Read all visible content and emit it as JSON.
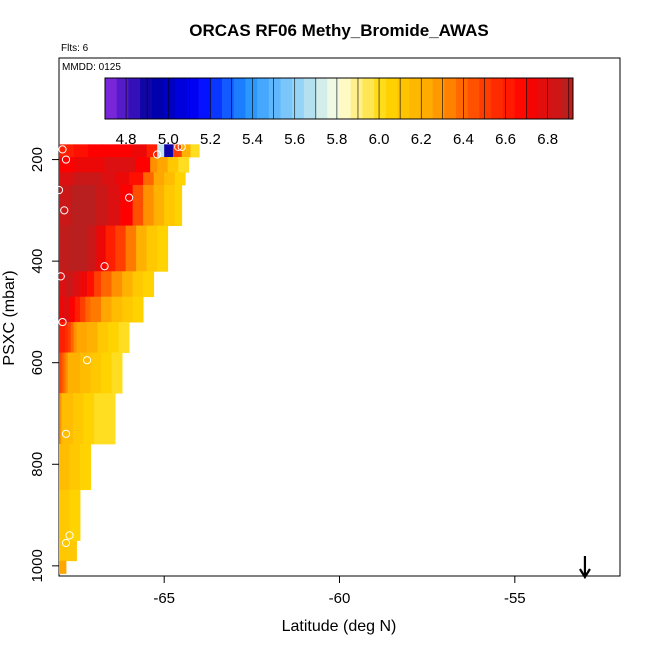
{
  "chart_data": {
    "type": "heatmap",
    "title": "ORCAS RF06 Methy_Bromide_AWAS",
    "flights_note": "Flts: 6",
    "date_note": "MMDD: 0125",
    "xlabel": "Latitude (deg N)",
    "ylabel": "PSXC (mbar)",
    "xlim": [
      -68,
      -52
    ],
    "ylim": [
      1020,
      0
    ],
    "x_ticks": [
      -65,
      -60,
      -55
    ],
    "x_tick_labels": [
      "-65",
      "-60",
      "-55"
    ],
    "y_ticks": [
      200,
      400,
      600,
      800,
      1000
    ],
    "y_tick_labels": [
      "200",
      "400",
      "600",
      "800",
      "1000"
    ],
    "colorbar": {
      "min": 4.7,
      "max": 6.92,
      "ticks": [
        4.8,
        5.0,
        5.2,
        5.4,
        5.6,
        5.8,
        6.0,
        6.2,
        6.4,
        6.6,
        6.8
      ],
      "tick_labels": [
        "4.8",
        "5.0",
        "5.2",
        "5.4",
        "5.6",
        "5.8",
        "6.0",
        "6.2",
        "6.4",
        "6.6",
        "6.8"
      ],
      "colors": [
        "#8a2be2",
        "#0000a0",
        "#0000ff",
        "#1e90ff",
        "#87cefa",
        "#ffffe0",
        "#ffd700",
        "#ffa500",
        "#ff4500",
        "#ff0000",
        "#b22222"
      ]
    },
    "heatmap_cells": [],
    "samples": [
      {
        "lat": -67.9,
        "p": 180
      },
      {
        "lat": -67.8,
        "p": 200
      },
      {
        "lat": -65.2,
        "p": 190
      },
      {
        "lat": -64.6,
        "p": 175
      },
      {
        "lat": -64.5,
        "p": 175
      },
      {
        "lat": -68.0,
        "p": 260
      },
      {
        "lat": -67.85,
        "p": 300
      },
      {
        "lat": -66.0,
        "p": 275
      },
      {
        "lat": -67.95,
        "p": 430
      },
      {
        "lat": -66.7,
        "p": 410
      },
      {
        "lat": -67.9,
        "p": 520
      },
      {
        "lat": -67.2,
        "p": 595
      },
      {
        "lat": -67.8,
        "p": 740
      },
      {
        "lat": -67.7,
        "p": 940
      },
      {
        "lat": -67.8,
        "p": 955
      }
    ],
    "arrow_marker": {
      "lat": -53.0,
      "direction": "down"
    }
  }
}
